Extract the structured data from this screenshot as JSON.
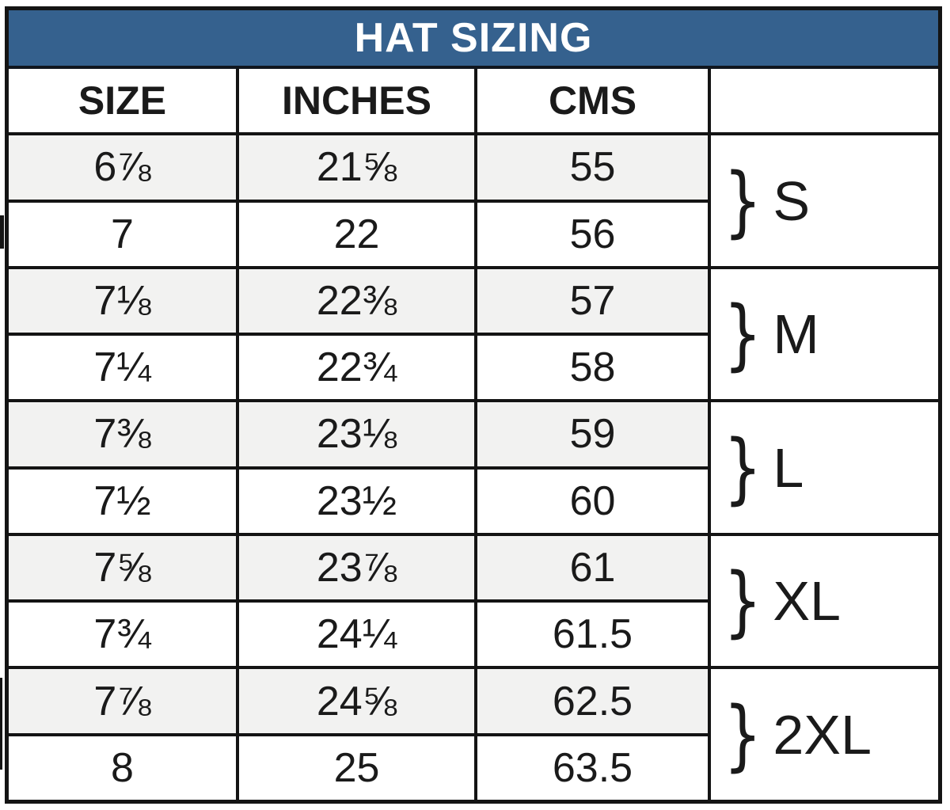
{
  "chart_data": {
    "type": "table",
    "title": "HAT SIZING",
    "columns": [
      "SIZE",
      "INCHES",
      "CMS",
      ""
    ],
    "rows": [
      {
        "size": "6⅞",
        "inches": "21⅝",
        "cms": "55"
      },
      {
        "size": "7",
        "inches": "22",
        "cms": "56"
      },
      {
        "size": "7⅛",
        "inches": "22⅜",
        "cms": "57"
      },
      {
        "size": "7¼",
        "inches": "22¾",
        "cms": "58"
      },
      {
        "size": "7⅜",
        "inches": "23⅛",
        "cms": "59"
      },
      {
        "size": "7½",
        "inches": "23½",
        "cms": "60"
      },
      {
        "size": "7⅝",
        "inches": "23⅞",
        "cms": "61"
      },
      {
        "size": "7¾",
        "inches": "24¼",
        "cms": "61.5"
      },
      {
        "size": "7⅞",
        "inches": "24⅝",
        "cms": "62.5"
      },
      {
        "size": "8",
        "inches": "25",
        "cms": "63.5"
      }
    ],
    "row_groups": [
      {
        "label": "S",
        "rows": [
          0,
          1
        ]
      },
      {
        "label": "M",
        "rows": [
          2,
          3
        ]
      },
      {
        "label": "L",
        "rows": [
          4,
          5
        ]
      },
      {
        "label": "XL",
        "rows": [
          6,
          7
        ]
      },
      {
        "label": "2XL",
        "rows": [
          8,
          9
        ]
      }
    ],
    "layout_hints": {
      "grid": "on",
      "shaded_row_pattern": "odd rows shaded"
    }
  },
  "icons": {
    "brace_glyph": "}"
  },
  "colors": {
    "title_bar": "#35618E",
    "title_text": "#FFFFFF",
    "shaded_row": "#F2F2F1",
    "row": "#FFFFFF",
    "border": "#141414",
    "text": "#1A1A1A"
  }
}
